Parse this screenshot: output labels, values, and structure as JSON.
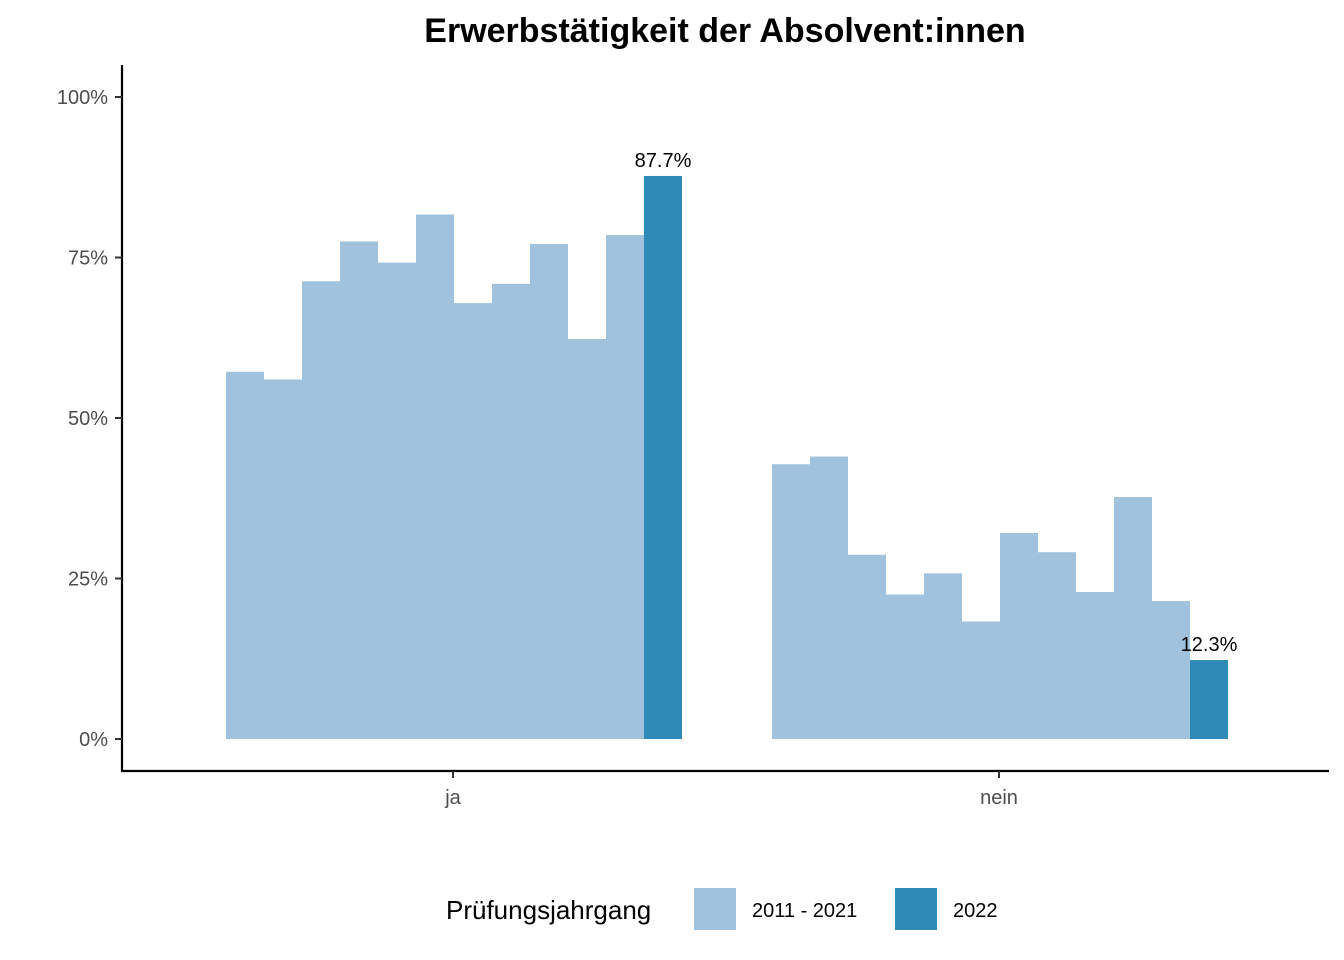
{
  "chart_data": {
    "type": "bar",
    "title": "Erwerbstätigkeit der Absolvent:innen",
    "categories": [
      "ja",
      "nein"
    ],
    "yticks": [
      "0%",
      "25%",
      "50%",
      "75%",
      "100%"
    ],
    "ylim": [
      0,
      100
    ],
    "grid": false,
    "legend_position": "bottom",
    "legend": {
      "title": "Prüfungsjahrgang",
      "entries": [
        {
          "label": "2011 - 2021",
          "color": "#a1c2dd"
        },
        {
          "label": "2022",
          "color": "#2e8bb7"
        }
      ]
    },
    "series_past": {
      "name": "2011 - 2021",
      "color": "#a1c2dd",
      "ja": [
        57.2,
        56.0,
        71.3,
        77.5,
        74.2,
        81.7,
        67.9,
        70.9,
        77.1,
        62.3,
        78.5
      ],
      "nein": [
        42.8,
        44.0,
        28.7,
        22.5,
        25.8,
        18.3,
        32.1,
        29.1,
        22.9,
        37.7,
        21.5
      ]
    },
    "series_current": {
      "name": "2022",
      "color": "#2e8bb7",
      "ja": 87.7,
      "nein": 12.3,
      "labels": {
        "ja": "87.7%",
        "nein": "12.3%"
      }
    }
  }
}
